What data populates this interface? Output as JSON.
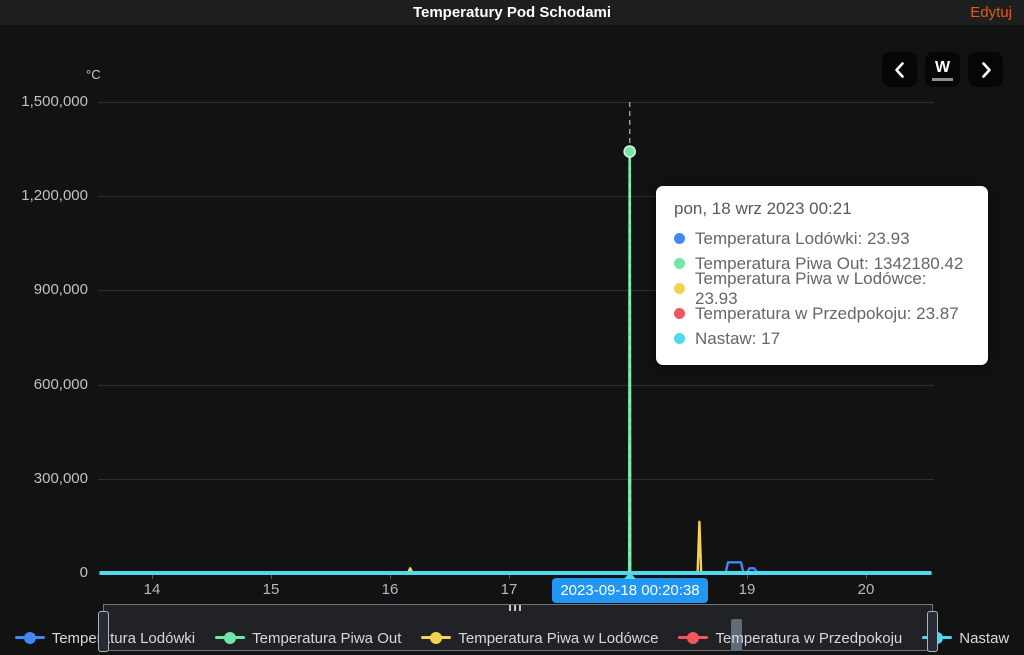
{
  "header": {
    "title": "Temperatury Pod Schodami",
    "edit_label": "Edytuj"
  },
  "toolbar": {
    "prev_label": "chevron-left",
    "period_label": "W",
    "next_label": "chevron-right"
  },
  "chart": {
    "unit": "°C",
    "tooltip_title": "pon, 18 wrz 2023 00:21",
    "cursor": {
      "label": "2023-09-18 00:20:38"
    }
  },
  "chart_data": {
    "type": "line",
    "title": "Temperatury Pod Schodami",
    "ylabel": "°C",
    "ylim": [
      0,
      1500000
    ],
    "grid": true,
    "legend_position": "bottom",
    "y_ticks": [
      {
        "label": "1,500,000",
        "value": 1500000
      },
      {
        "label": "1,200,000",
        "value": 1200000
      },
      {
        "label": "900,000",
        "value": 900000
      },
      {
        "label": "600,000",
        "value": 600000
      },
      {
        "label": "300,000",
        "value": 300000
      },
      {
        "label": "0",
        "value": 0
      }
    ],
    "x_ticks": [
      {
        "label": "14",
        "day": 14
      },
      {
        "label": "15",
        "day": 15
      },
      {
        "label": "16",
        "day": 16
      },
      {
        "label": "17",
        "day": 17
      },
      {
        "label": "18",
        "day": 18
      },
      {
        "label": "19",
        "day": 19
      },
      {
        "label": "20",
        "day": 20
      }
    ],
    "x_range_days": [
      13.56,
      20.55
    ],
    "cursor_day": 18.0143,
    "series": [
      {
        "name": "Temperatura Lodówki",
        "color": "#4287f5",
        "cursor_value": "23.93",
        "width": 2.4,
        "points": [
          [
            13.56,
            24
          ],
          [
            18.82,
            24
          ],
          [
            18.84,
            34000
          ],
          [
            18.95,
            34000
          ],
          [
            18.97,
            24
          ],
          [
            19.0,
            24
          ],
          [
            19.02,
            15000
          ],
          [
            19.06,
            15000
          ],
          [
            19.09,
            24
          ],
          [
            20.55,
            24
          ]
        ]
      },
      {
        "name": "Temperatura Piwa Out",
        "color": "#73e5a6",
        "cursor_value": "1342180.42",
        "width": 2.7,
        "points": [
          [
            13.56,
            24
          ],
          [
            18.011,
            24
          ],
          [
            18.0143,
            1342180.42
          ],
          [
            18.018,
            24
          ],
          [
            20.55,
            24
          ]
        ],
        "marker": [
          18.0143,
          1342180.42
        ]
      },
      {
        "name": "Temperatura Piwa w Lodówce",
        "color": "#f3d34f",
        "cursor_value": "23.93",
        "width": 2.4,
        "points": [
          [
            13.56,
            24
          ],
          [
            16.15,
            24
          ],
          [
            16.17,
            15000
          ],
          [
            16.19,
            24
          ],
          [
            18.585,
            24
          ],
          [
            18.6,
            163000
          ],
          [
            18.615,
            24
          ],
          [
            20.55,
            24
          ]
        ]
      },
      {
        "name": "Temperatura w Przedpokoju",
        "color": "#f4555f",
        "cursor_value": "23.87",
        "width": 2.4,
        "points": [
          [
            13.56,
            24
          ],
          [
            20.55,
            24
          ]
        ]
      },
      {
        "name": "Nastaw",
        "color": "#4fd8ee",
        "cursor_value": "17",
        "width": 4,
        "points": [
          [
            13.56,
            17
          ],
          [
            20.55,
            17
          ]
        ]
      }
    ],
    "draw_order": [
      3,
      0,
      2,
      1,
      4
    ]
  }
}
